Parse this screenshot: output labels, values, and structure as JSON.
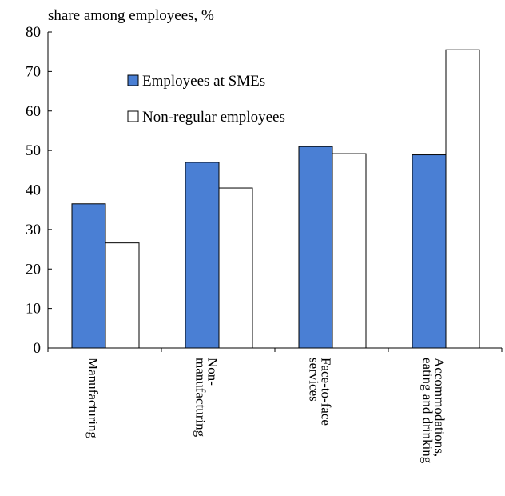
{
  "chart_data": {
    "type": "bar",
    "title": "",
    "ylabel": "share among employees,  %",
    "xlabel": "",
    "ylim": [
      0,
      80
    ],
    "yticks": [
      0,
      10,
      20,
      30,
      40,
      50,
      60,
      70,
      80
    ],
    "categories": [
      [
        "Manufacturing"
      ],
      [
        "Non-",
        "manufacturing"
      ],
      [
        "Face-to-face",
        "services"
      ],
      [
        "Accommodations,",
        "eating and drinking"
      ]
    ],
    "series": [
      {
        "name": "Employees at SMEs",
        "values": [
          36.5,
          47.0,
          51.0,
          48.9
        ],
        "color": "#4a7fd4"
      },
      {
        "name": "Non-regular employees",
        "values": [
          26.6,
          40.5,
          49.2,
          75.5
        ],
        "color": "#ffffff"
      }
    ],
    "legend_position": "upper-left inside plot",
    "grid": false
  }
}
